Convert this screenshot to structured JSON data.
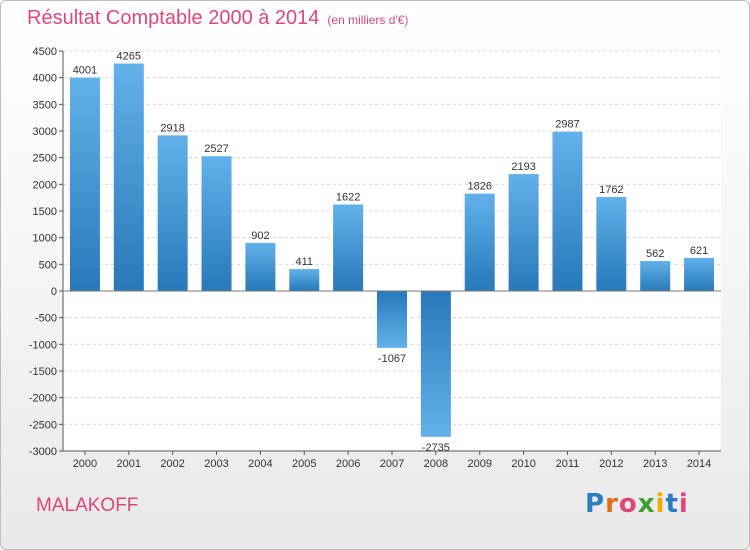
{
  "title": "Résultat Comptable 2000 à 2014",
  "subtitle": "(en milliers d'€)",
  "commune": "MALAKOFF",
  "brand": {
    "letters": [
      "P",
      "r",
      "o",
      "x",
      "i",
      "t",
      "i"
    ],
    "colors": [
      "#2b7cc2",
      "#e06f1c",
      "#e0467c",
      "#3f9f34",
      "#f2a900",
      "#2b7cc2",
      "#e0467c"
    ]
  },
  "colors": {
    "title": "#e0467c",
    "bar_light": "#62b1ea",
    "bar_dark": "#2879ba"
  },
  "chart_data": {
    "type": "bar",
    "categories": [
      "2000",
      "2001",
      "2002",
      "2003",
      "2004",
      "2005",
      "2006",
      "2007",
      "2008",
      "2009",
      "2010",
      "2011",
      "2012",
      "2013",
      "2014"
    ],
    "values": [
      4001,
      4265,
      2918,
      2527,
      902,
      411,
      1622,
      -1067,
      -2735,
      1826,
      2193,
      2987,
      1762,
      562,
      621
    ],
    "data_labels": [
      "4001",
      "4265",
      "2918",
      "2527",
      "902",
      "411",
      "1622",
      "-1067",
      "-2735",
      "1826",
      "2193",
      "2987",
      "1762",
      "562",
      "621"
    ],
    "ylim": [
      -3000,
      4500
    ],
    "yticks": [
      4500,
      4000,
      3500,
      3000,
      2500,
      2000,
      1500,
      1000,
      500,
      0,
      -500,
      -1000,
      -1500,
      -2000,
      -2500,
      -3000
    ],
    "ytick_labels": [
      "4500",
      "4000",
      "3500",
      "3000",
      "2500",
      "2000",
      "1500",
      "1000",
      "500",
      "0",
      "-500",
      "-1000",
      "-1500",
      "-2000",
      "-2500",
      "-3000"
    ],
    "grid": true,
    "xlabel": "",
    "ylabel": ""
  }
}
